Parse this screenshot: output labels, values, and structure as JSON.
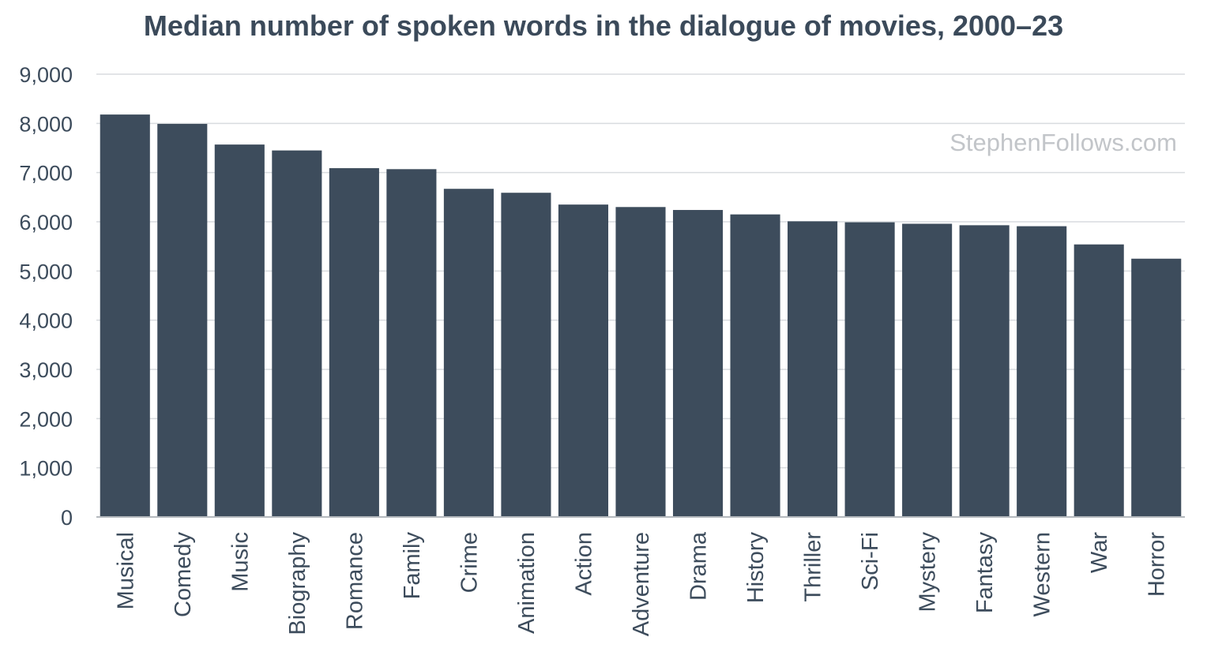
{
  "chart_data": {
    "type": "bar",
    "title": "Median number of spoken words in the dialogue of movies, 2000–23",
    "watermark": "StephenFollows.com",
    "categories": [
      "Musical",
      "Comedy",
      "Music",
      "Biography",
      "Romance",
      "Family",
      "Crime",
      "Animation",
      "Action",
      "Adventure",
      "Drama",
      "History",
      "Thriller",
      "Sci-Fi",
      "Mystery",
      "Fantasy",
      "Western",
      "War",
      "Horror"
    ],
    "values": [
      8180,
      7990,
      7570,
      7450,
      7090,
      7070,
      6670,
      6590,
      6350,
      6300,
      6240,
      6150,
      6010,
      5990,
      5960,
      5930,
      5910,
      5540,
      5250
    ],
    "yticks": [
      "0",
      "1,000",
      "2,000",
      "3,000",
      "4,000",
      "5,000",
      "6,000",
      "7,000",
      "8,000",
      "9,000"
    ],
    "ylim": [
      0,
      9000
    ],
    "grid": true,
    "colors": {
      "bar": "#3d4c5c",
      "grid": "#d9dcdf",
      "axis": "#b5b9be",
      "text": "#3d4c5c"
    }
  }
}
